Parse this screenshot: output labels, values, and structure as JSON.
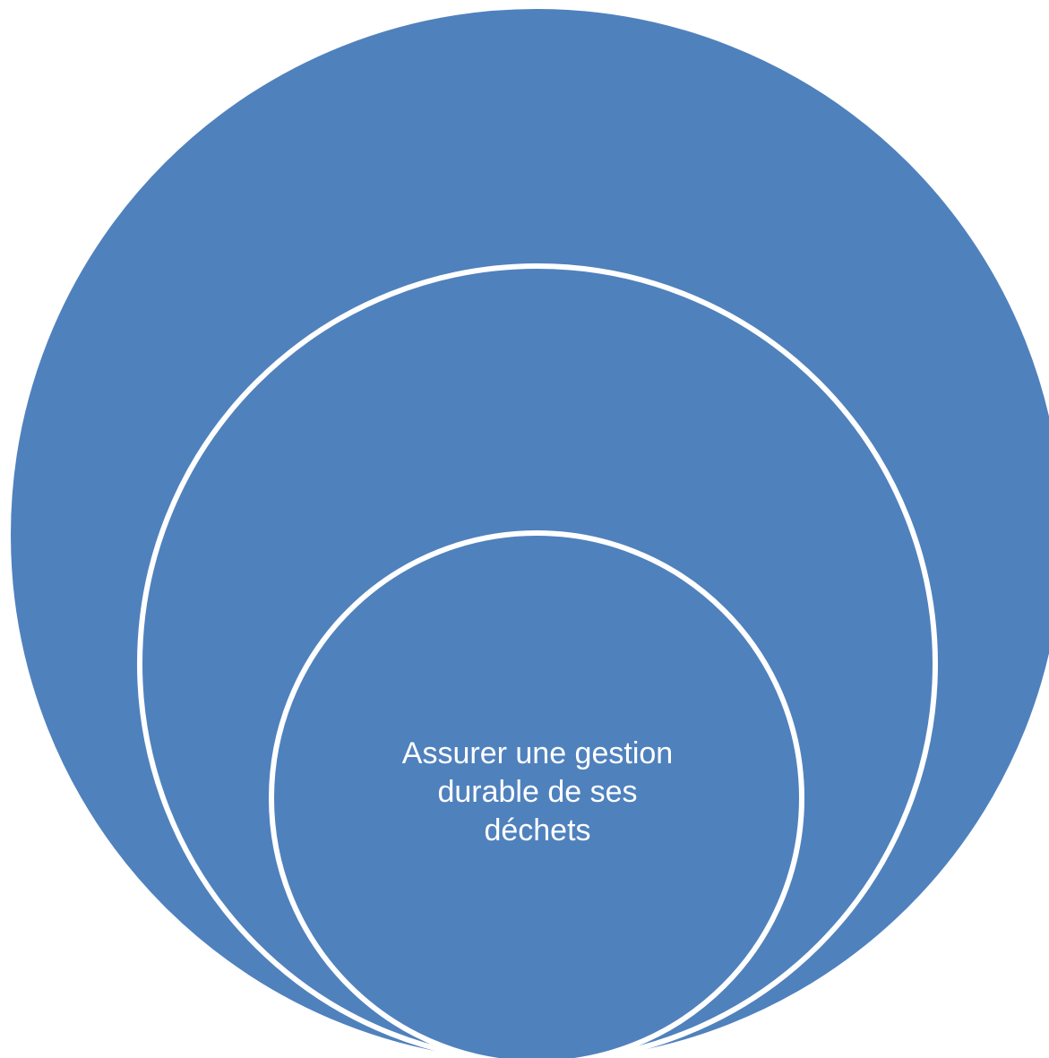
{
  "diagram": {
    "type": "nested-circles",
    "fill_color": "#4f81bd",
    "outline_color": "#ffffff",
    "inner_label_lines": [
      "Assurer une gestion",
      "durable de ses",
      "déchets"
    ]
  }
}
